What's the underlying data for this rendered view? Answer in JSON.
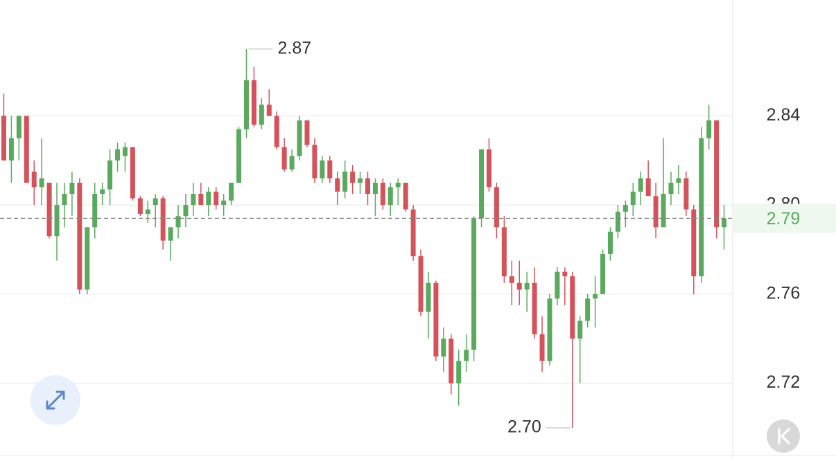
{
  "chart_data": {
    "type": "candlestick",
    "up_color": "#5aa95e",
    "down_color": "#d4535b",
    "ylim": [
      2.686,
      2.892
    ],
    "yticks": [
      2.72,
      2.76,
      {
        "value": 2.8,
        "label": "2.80"
      },
      2.84
    ],
    "grid": true,
    "last_price": {
      "value": 2.794,
      "label": "2.79"
    },
    "annotations": [
      2.87,
      {
        "value": 2.7,
        "label": "2.70"
      }
    ],
    "open": [
      2.84,
      2.82,
      2.83,
      2.84,
      2.815,
      2.808,
      2.81,
      2.786,
      2.8,
      2.805,
      2.81,
      2.762,
      2.79,
      2.805,
      2.807,
      2.82,
      2.822,
      2.826,
      2.803,
      2.796,
      2.8,
      2.803,
      2.784,
      2.79,
      2.795,
      2.8,
      2.805,
      2.8,
      2.806,
      2.8,
      2.802,
      2.81,
      2.834,
      2.856,
      2.836,
      2.845,
      2.84,
      2.826,
      2.816,
      2.822,
      2.838,
      2.827,
      2.812,
      2.82,
      2.812,
      2.806,
      2.815,
      2.81,
      2.812,
      2.805,
      2.81,
      2.8,
      2.808,
      2.81,
      2.798,
      2.777,
      2.752,
      2.765,
      2.732,
      2.74,
      2.72,
      2.73,
      2.735,
      2.794,
      2.825,
      2.808,
      2.79,
      2.768,
      2.765,
      2.762,
      2.765,
      2.742,
      2.73,
      2.758,
      2.77,
      2.768,
      2.74,
      2.748,
      2.758,
      2.76,
      2.778,
      2.788,
      2.797,
      2.8,
      2.806,
      2.812,
      2.804,
      2.79,
      2.805,
      2.81,
      2.812,
      2.798,
      2.768,
      2.83,
      2.838,
      2.79
    ],
    "high": [
      2.85,
      2.84,
      2.84,
      2.84,
      2.82,
      2.83,
      2.81,
      2.81,
      2.81,
      2.815,
      2.812,
      2.79,
      2.81,
      2.81,
      2.825,
      2.828,
      2.828,
      2.826,
      2.804,
      2.802,
      2.805,
      2.804,
      2.79,
      2.8,
      2.805,
      2.81,
      2.81,
      2.808,
      2.808,
      2.805,
      2.81,
      2.835,
      2.87,
      2.862,
      2.848,
      2.852,
      2.842,
      2.83,
      2.825,
      2.84,
      2.838,
      2.83,
      2.822,
      2.822,
      2.815,
      2.82,
      2.818,
      2.815,
      2.815,
      2.812,
      2.812,
      2.81,
      2.812,
      2.81,
      2.8,
      2.78,
      2.77,
      2.766,
      2.745,
      2.742,
      2.735,
      2.742,
      2.795,
      2.825,
      2.83,
      2.81,
      2.795,
      2.775,
      2.775,
      2.77,
      2.772,
      2.75,
      2.76,
      2.772,
      2.772,
      2.77,
      2.75,
      2.76,
      2.768,
      2.78,
      2.79,
      2.8,
      2.802,
      2.81,
      2.815,
      2.82,
      2.81,
      2.83,
      2.815,
      2.818,
      2.815,
      2.8,
      2.835,
      2.845,
      2.838,
      2.8
    ],
    "low": [
      2.82,
      2.81,
      2.82,
      2.81,
      2.8,
      2.8,
      2.785,
      2.775,
      2.79,
      2.795,
      2.76,
      2.76,
      2.785,
      2.8,
      2.8,
      2.815,
      2.815,
      2.802,
      2.795,
      2.792,
      2.79,
      2.78,
      2.775,
      2.785,
      2.79,
      2.795,
      2.8,
      2.795,
      2.798,
      2.795,
      2.8,
      2.81,
      2.83,
      2.835,
      2.834,
      2.84,
      2.825,
      2.815,
      2.815,
      2.82,
      2.826,
      2.81,
      2.81,
      2.81,
      2.8,
      2.803,
      2.805,
      2.805,
      2.8,
      2.795,
      2.798,
      2.795,
      2.8,
      2.797,
      2.775,
      2.75,
      2.74,
      2.73,
      2.725,
      2.715,
      2.71,
      2.725,
      2.73,
      2.79,
      2.806,
      2.785,
      2.765,
      2.755,
      2.755,
      2.752,
      2.74,
      2.725,
      2.728,
      2.755,
      2.755,
      2.7,
      2.72,
      2.745,
      2.745,
      2.76,
      2.775,
      2.785,
      2.79,
      2.795,
      2.8,
      2.805,
      2.785,
      2.79,
      2.8,
      2.805,
      2.795,
      2.76,
      2.765,
      2.825,
      2.785,
      2.78
    ],
    "close": [
      2.82,
      2.83,
      2.84,
      2.81,
      2.808,
      2.812,
      2.786,
      2.8,
      2.805,
      2.81,
      2.762,
      2.79,
      2.805,
      2.807,
      2.82,
      2.825,
      2.826,
      2.803,
      2.796,
      2.798,
      2.803,
      2.784,
      2.79,
      2.795,
      2.8,
      2.805,
      2.8,
      2.806,
      2.8,
      2.802,
      2.81,
      2.834,
      2.856,
      2.836,
      2.845,
      2.84,
      2.826,
      2.816,
      2.822,
      2.838,
      2.827,
      2.812,
      2.82,
      2.812,
      2.806,
      2.815,
      2.81,
      2.812,
      2.805,
      2.81,
      2.8,
      2.808,
      2.81,
      2.798,
      2.777,
      2.752,
      2.765,
      2.732,
      2.74,
      2.72,
      2.73,
      2.735,
      2.794,
      2.825,
      2.808,
      2.79,
      2.768,
      2.765,
      2.762,
      2.765,
      2.742,
      2.73,
      2.758,
      2.77,
      2.768,
      2.74,
      2.748,
      2.758,
      2.76,
      2.778,
      2.788,
      2.797,
      2.8,
      2.806,
      2.812,
      2.804,
      2.79,
      2.805,
      2.81,
      2.812,
      2.798,
      2.768,
      2.83,
      2.838,
      2.79,
      2.794
    ]
  }
}
